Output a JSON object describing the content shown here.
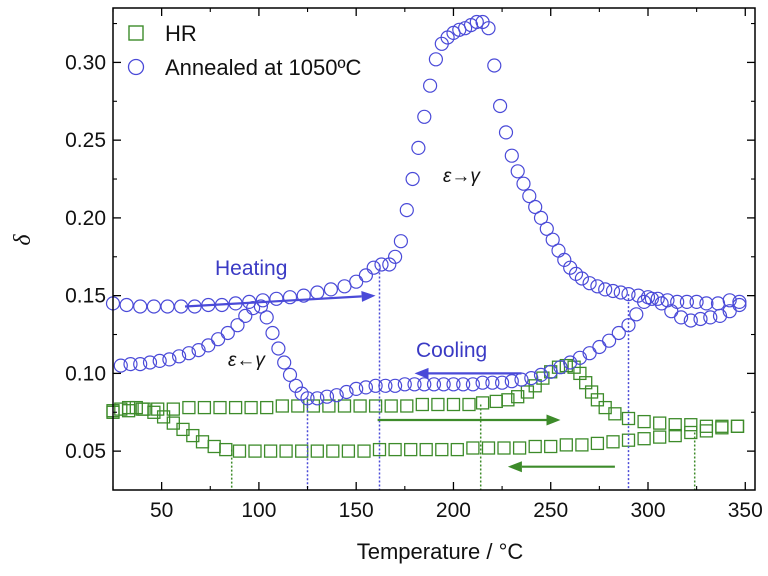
{
  "chart_data": {
    "type": "scatter",
    "xlabel": "Temperature / °C",
    "ylabel": "δ",
    "xlim": [
      25,
      355
    ],
    "ylim": [
      0.025,
      0.335
    ],
    "xticks": [
      "50",
      "100",
      "150",
      "200",
      "250",
      "300",
      "350"
    ],
    "yticks": [
      "0.05",
      "0.10",
      "0.15",
      "0.20",
      "0.25",
      "0.30"
    ],
    "grid": false,
    "legend_position": "top-left",
    "series": [
      {
        "name": "HR",
        "marker": "square",
        "color": "#3d8b2a",
        "heating": [
          [
            25,
            0.075
          ],
          [
            33,
            0.076
          ],
          [
            40,
            0.077
          ],
          [
            48,
            0.077
          ],
          [
            56,
            0.077
          ],
          [
            64,
            0.078
          ],
          [
            72,
            0.078
          ],
          [
            80,
            0.078
          ],
          [
            88,
            0.078
          ],
          [
            96,
            0.078
          ],
          [
            104,
            0.078
          ],
          [
            112,
            0.079
          ],
          [
            120,
            0.079
          ],
          [
            128,
            0.079
          ],
          [
            136,
            0.079
          ],
          [
            144,
            0.079
          ],
          [
            152,
            0.079
          ],
          [
            160,
            0.079
          ],
          [
            168,
            0.079
          ],
          [
            176,
            0.079
          ],
          [
            184,
            0.08
          ],
          [
            192,
            0.08
          ],
          [
            200,
            0.08
          ],
          [
            208,
            0.08
          ],
          [
            215,
            0.081
          ],
          [
            222,
            0.082
          ],
          [
            228,
            0.083
          ],
          [
            233,
            0.085
          ],
          [
            238,
            0.088
          ],
          [
            242,
            0.092
          ],
          [
            246,
            0.097
          ],
          [
            250,
            0.101
          ],
          [
            254,
            0.104
          ],
          [
            258,
            0.105
          ],
          [
            262,
            0.104
          ],
          [
            265,
            0.1
          ],
          [
            268,
            0.094
          ],
          [
            271,
            0.088
          ],
          [
            274,
            0.083
          ],
          [
            278,
            0.078
          ],
          [
            283,
            0.074
          ],
          [
            290,
            0.071
          ],
          [
            298,
            0.069
          ],
          [
            306,
            0.068
          ],
          [
            314,
            0.067
          ],
          [
            322,
            0.067
          ],
          [
            330,
            0.066
          ],
          [
            338,
            0.066
          ],
          [
            346,
            0.066
          ]
        ],
        "cooling": [
          [
            346,
            0.066
          ],
          [
            338,
            0.065
          ],
          [
            330,
            0.063
          ],
          [
            322,
            0.062
          ],
          [
            314,
            0.06
          ],
          [
            306,
            0.059
          ],
          [
            298,
            0.058
          ],
          [
            290,
            0.057
          ],
          [
            282,
            0.056
          ],
          [
            274,
            0.055
          ],
          [
            266,
            0.054
          ],
          [
            258,
            0.054
          ],
          [
            250,
            0.053
          ],
          [
            242,
            0.053
          ],
          [
            234,
            0.052
          ],
          [
            226,
            0.052
          ],
          [
            218,
            0.052
          ],
          [
            210,
            0.052
          ],
          [
            202,
            0.051
          ],
          [
            194,
            0.051
          ],
          [
            186,
            0.051
          ],
          [
            178,
            0.051
          ],
          [
            170,
            0.051
          ],
          [
            162,
            0.051
          ],
          [
            154,
            0.05
          ],
          [
            146,
            0.05
          ],
          [
            138,
            0.05
          ],
          [
            130,
            0.05
          ],
          [
            122,
            0.05
          ],
          [
            114,
            0.05
          ],
          [
            106,
            0.05
          ],
          [
            98,
            0.05
          ],
          [
            90,
            0.05
          ],
          [
            83,
            0.051
          ],
          [
            77,
            0.053
          ],
          [
            71,
            0.056
          ],
          [
            66,
            0.06
          ],
          [
            61,
            0.064
          ],
          [
            56,
            0.068
          ],
          [
            51,
            0.072
          ],
          [
            46,
            0.075
          ],
          [
            41,
            0.077
          ],
          [
            37,
            0.078
          ],
          [
            33,
            0.078
          ],
          [
            29,
            0.077
          ],
          [
            25,
            0.076
          ]
        ]
      },
      {
        "name": "Annealed at 1050ºC",
        "marker": "circle",
        "color": "#4a4ad8",
        "heating": [
          [
            25,
            0.145
          ],
          [
            32,
            0.144
          ],
          [
            39,
            0.143
          ],
          [
            46,
            0.143
          ],
          [
            53,
            0.143
          ],
          [
            60,
            0.143
          ],
          [
            67,
            0.143
          ],
          [
            74,
            0.144
          ],
          [
            81,
            0.144
          ],
          [
            88,
            0.145
          ],
          [
            95,
            0.146
          ],
          [
            102,
            0.147
          ],
          [
            109,
            0.148
          ],
          [
            116,
            0.149
          ],
          [
            123,
            0.15
          ],
          [
            130,
            0.152
          ],
          [
            137,
            0.154
          ],
          [
            144,
            0.156
          ],
          [
            150,
            0.159
          ],
          [
            155,
            0.163
          ],
          [
            159,
            0.168
          ],
          [
            163,
            0.17
          ],
          [
            167,
            0.17
          ],
          [
            170,
            0.175
          ],
          [
            173,
            0.185
          ],
          [
            176,
            0.205
          ],
          [
            179,
            0.225
          ],
          [
            182,
            0.245
          ],
          [
            185,
            0.265
          ],
          [
            188,
            0.285
          ],
          [
            191,
            0.302
          ],
          [
            194,
            0.312
          ],
          [
            197,
            0.316
          ],
          [
            200,
            0.319
          ],
          [
            203,
            0.321
          ],
          [
            206,
            0.322
          ],
          [
            209,
            0.324
          ],
          [
            212,
            0.326
          ],
          [
            215,
            0.326
          ],
          [
            218,
            0.322
          ],
          [
            221,
            0.298
          ],
          [
            224,
            0.272
          ],
          [
            227,
            0.255
          ],
          [
            230,
            0.24
          ],
          [
            233,
            0.23
          ],
          [
            236,
            0.222
          ],
          [
            239,
            0.214
          ],
          [
            242,
            0.207
          ],
          [
            245,
            0.2
          ],
          [
            248,
            0.193
          ],
          [
            251,
            0.186
          ],
          [
            254,
            0.179
          ],
          [
            257,
            0.173
          ],
          [
            260,
            0.168
          ],
          [
            263,
            0.164
          ],
          [
            266,
            0.161
          ],
          [
            270,
            0.158
          ],
          [
            274,
            0.156
          ],
          [
            278,
            0.154
          ],
          [
            282,
            0.153
          ],
          [
            286,
            0.152
          ],
          [
            290,
            0.151
          ],
          [
            295,
            0.15
          ],
          [
            300,
            0.149
          ],
          [
            305,
            0.148
          ],
          [
            310,
            0.147
          ],
          [
            315,
            0.146
          ],
          [
            320,
            0.146
          ],
          [
            325,
            0.146
          ],
          [
            330,
            0.145
          ],
          [
            336,
            0.145
          ],
          [
            342,
            0.147
          ],
          [
            347,
            0.146
          ]
        ],
        "cooling": [
          [
            347,
            0.144
          ],
          [
            342,
            0.14
          ],
          [
            337,
            0.137
          ],
          [
            332,
            0.136
          ],
          [
            327,
            0.135
          ],
          [
            322,
            0.134
          ],
          [
            317,
            0.136
          ],
          [
            312,
            0.14
          ],
          [
            307,
            0.145
          ],
          [
            302,
            0.148
          ],
          [
            298,
            0.146
          ],
          [
            294,
            0.138
          ],
          [
            290,
            0.131
          ],
          [
            285,
            0.126
          ],
          [
            280,
            0.121
          ],
          [
            275,
            0.117
          ],
          [
            270,
            0.113
          ],
          [
            265,
            0.11
          ],
          [
            260,
            0.107
          ],
          [
            255,
            0.104
          ],
          [
            250,
            0.101
          ],
          [
            245,
            0.099
          ],
          [
            240,
            0.097
          ],
          [
            235,
            0.096
          ],
          [
            230,
            0.095
          ],
          [
            225,
            0.094
          ],
          [
            220,
            0.094
          ],
          [
            215,
            0.094
          ],
          [
            210,
            0.093
          ],
          [
            205,
            0.093
          ],
          [
            200,
            0.093
          ],
          [
            195,
            0.093
          ],
          [
            190,
            0.093
          ],
          [
            185,
            0.093
          ],
          [
            180,
            0.093
          ],
          [
            175,
            0.093
          ],
          [
            170,
            0.092
          ],
          [
            165,
            0.092
          ],
          [
            160,
            0.092
          ],
          [
            155,
            0.091
          ],
          [
            150,
            0.09
          ],
          [
            145,
            0.088
          ],
          [
            140,
            0.086
          ],
          [
            135,
            0.085
          ],
          [
            130,
            0.084
          ],
          [
            125,
            0.084
          ],
          [
            122,
            0.087
          ],
          [
            119,
            0.092
          ],
          [
            116,
            0.099
          ],
          [
            113,
            0.107
          ],
          [
            110,
            0.116
          ],
          [
            107,
            0.126
          ],
          [
            104,
            0.136
          ],
          [
            101,
            0.143
          ],
          [
            97,
            0.142
          ],
          [
            93,
            0.137
          ],
          [
            89,
            0.131
          ],
          [
            84,
            0.126
          ],
          [
            79,
            0.122
          ],
          [
            74,
            0.118
          ],
          [
            69,
            0.115
          ],
          [
            64,
            0.113
          ],
          [
            59,
            0.111
          ],
          [
            54,
            0.109
          ],
          [
            49,
            0.108
          ],
          [
            44,
            0.107
          ],
          [
            39,
            0.106
          ],
          [
            34,
            0.106
          ],
          [
            29,
            0.105
          ]
        ]
      }
    ],
    "annotations": {
      "heating": "Heating",
      "cooling": "Cooling",
      "eps_gamma_forward": "ε→γ",
      "eps_gamma_reverse": "ε←γ"
    },
    "dotted_markers": [
      {
        "series": "Annealed at 1050ºC",
        "x": 125,
        "y": 0.084
      },
      {
        "series": "Annealed at 1050ºC",
        "x": 162,
        "y": 0.17
      },
      {
        "series": "Annealed at 1050ºC",
        "x": 290,
        "y": 0.151
      },
      {
        "series": "HR",
        "x": 86,
        "y": 0.051
      },
      {
        "series": "HR",
        "x": 214,
        "y": 0.08
      },
      {
        "series": "HR",
        "x": 324,
        "y": 0.062
      }
    ],
    "arrows": [
      {
        "series": "Annealed at 1050ºC",
        "direction": "right",
        "x0": 62,
        "y0": 0.143,
        "x1": 160,
        "y1": 0.15
      },
      {
        "series": "Annealed at 1050ºC",
        "direction": "left",
        "x0": 235,
        "y0": 0.1,
        "x1": 180,
        "y1": 0.1
      },
      {
        "series": "HR",
        "direction": "right",
        "x0": 161,
        "y0": 0.07,
        "x1": 255,
        "y1": 0.07
      },
      {
        "series": "HR",
        "direction": "left",
        "x0": 283,
        "y0": 0.04,
        "x1": 228,
        "y1": 0.04
      }
    ]
  }
}
